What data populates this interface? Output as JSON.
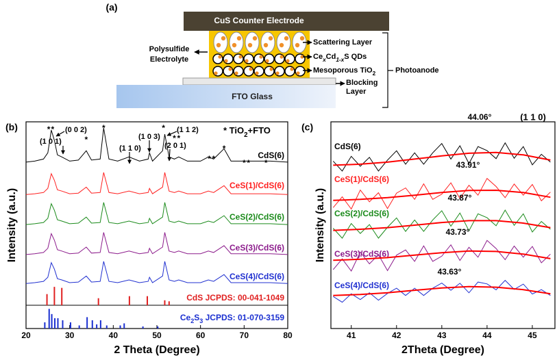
{
  "diagram": {
    "panel_label": "(a)",
    "counter_electrode": "CuS Counter Electrode",
    "scattering": "Scattering Layer",
    "qds": [
      "Ce",
      "x",
      "Cd",
      "1-x",
      "S QDs"
    ],
    "mesoporous": [
      "Mesoporous TiO",
      "2"
    ],
    "electrolyte": [
      "Polysulfide",
      "Electrolyte"
    ],
    "blocking": [
      "Blocking",
      "Layer"
    ],
    "fto": "FTO Glass",
    "photoanode": "Photoanode"
  },
  "chart_data": [
    {
      "type": "line",
      "panel_label": "(b)",
      "xlabel": "2 Theta (Degree)",
      "ylabel": "Intensity (a.u.)",
      "xlim": [
        20,
        80
      ],
      "xticks": [
        20,
        30,
        40,
        50,
        60,
        70,
        80
      ],
      "ylim": [
        0,
        100
      ],
      "x": [
        20,
        22,
        24,
        25,
        25.8,
        26.5,
        27.2,
        28.2,
        30,
        32,
        33.8,
        35,
        37,
        37.8,
        39,
        41,
        43.6,
        46,
        48,
        48.3,
        49,
        51.3,
        51.8,
        52.8,
        54,
        55,
        57,
        60,
        61.8,
        63,
        65.4,
        67,
        70,
        73,
        76,
        80
      ],
      "series": [
        {
          "name": "CdS(6)",
          "color": "#000000",
          "values": [
            80.5,
            81,
            82,
            85,
            96,
            91,
            84,
            83,
            81,
            81.5,
            86,
            81.5,
            82,
            97,
            82,
            81,
            83,
            81,
            82,
            85,
            81,
            86,
            94,
            83,
            82,
            83,
            81,
            81,
            83,
            82,
            87,
            81,
            81,
            81,
            81,
            80.5
          ]
        },
        {
          "name": "CeS(1)/CdS(6)",
          "color": "#ff2020",
          "values": [
            64.8,
            65.2,
            65.8,
            67.8,
            74.9,
            71.7,
            67.1,
            66.5,
            65.2,
            65.5,
            68.4,
            65.5,
            65.8,
            75.5,
            65.8,
            65.2,
            66.5,
            65.2,
            65.8,
            67.8,
            65.2,
            68.4,
            75.5,
            66.5,
            65.8,
            66.5,
            65.2,
            65.2,
            66.5,
            65.8,
            69.1,
            65.2,
            65.2,
            65.2,
            65.2,
            64.8
          ]
        },
        {
          "name": "CeS(2)/CdS(6)",
          "color": "#1a8a1a",
          "values": [
            50.3,
            50.7,
            51.3,
            53.3,
            60.4,
            57.2,
            52.6,
            52,
            50.7,
            51,
            53.9,
            51,
            51.3,
            61,
            51.3,
            50.7,
            52,
            50.7,
            51.3,
            53.3,
            50.7,
            53.9,
            61,
            52,
            51.3,
            52,
            50.7,
            50.7,
            52,
            51.3,
            54.6,
            50.7,
            50.7,
            50.7,
            50.7,
            50.3
          ]
        },
        {
          "name": "CeS(3)/CdS(6)",
          "color": "#8b1a8b",
          "values": [
            35.8,
            36.2,
            36.8,
            38.8,
            45.9,
            42.7,
            38.1,
            37.5,
            36.2,
            36.5,
            39.4,
            36.5,
            36.8,
            46.5,
            36.8,
            36.2,
            37.5,
            36.2,
            36.8,
            38.8,
            36.2,
            39.4,
            46.5,
            37.5,
            36.8,
            37.5,
            36.2,
            36.2,
            37.5,
            36.8,
            40.1,
            36.2,
            36.2,
            36.2,
            36.2,
            35.8
          ]
        },
        {
          "name": "CeS(4)/CdS(6)",
          "color": "#2030d0",
          "values": [
            21.8,
            22.2,
            22.8,
            24.8,
            31.9,
            28.7,
            24.1,
            23.5,
            22.2,
            22.5,
            25.4,
            22.5,
            22.8,
            32.5,
            22.8,
            22.2,
            23.5,
            22.2,
            22.8,
            24.8,
            22.2,
            25.4,
            32.5,
            23.5,
            22.8,
            23.5,
            22.2,
            22.2,
            23.5,
            22.8,
            26.1,
            22.2,
            22.2,
            22.2,
            22.2,
            21.8
          ]
        }
      ],
      "asterisk_label": "*",
      "asterisk_x": [
        25.2,
        26.1,
        33.8,
        37.8,
        51.5,
        54,
        55,
        62,
        63,
        65.4,
        70,
        71,
        75
      ],
      "legend_note": [
        "* TiO",
        "2",
        "+FTO"
      ],
      "hkl_labels": [
        "(0 0 2)",
        "(1 0 1)",
        "(1 1 0)",
        "(1 0 3)",
        "(1 1 2)",
        "(2 0 1)"
      ],
      "references": [
        {
          "name": [
            "CdS JCPDS: 00-041-1049"
          ],
          "color": "#e02020",
          "x": [
            24.8,
            26.5,
            28.2,
            36.6,
            43.7,
            47.8,
            51.8,
            52.8
          ],
          "values": [
            5.4,
            8.9,
            8.4,
            3.4,
            4.4,
            4.4,
            2.4,
            1.9
          ]
        },
        {
          "name": [
            "Ce",
            "2",
            "S",
            "3",
            " JCPDS: 01-070-3159"
          ],
          "color": "#1a2fd0",
          "x": [
            24.3,
            25.3,
            25.9,
            26.6,
            27.3,
            28.4,
            30.2,
            32.2,
            34,
            35.2,
            36.2,
            37.1,
            38.5,
            41.6,
            42.5,
            46.8,
            50.2
          ],
          "values": [
            3,
            9.5,
            7,
            5,
            5,
            4,
            3,
            1.5,
            5.5,
            4,
            2,
            4,
            1.5,
            1.5,
            2.5,
            1,
            1
          ]
        }
      ]
    },
    {
      "type": "line",
      "panel_label": "(c)",
      "xlabel": "2Theta (Degree)",
      "ylabel": "Intensity (a.u.)",
      "xlim": [
        40.55,
        45.5
      ],
      "xticks": [
        41,
        42,
        43,
        44,
        45
      ],
      "ylim": [
        0,
        100
      ],
      "x": [
        40.6,
        40.8,
        41,
        41.2,
        41.4,
        41.6,
        41.8,
        42,
        42.2,
        42.4,
        42.6,
        42.8,
        43,
        43.2,
        43.4,
        43.6,
        43.8,
        44,
        44.2,
        44.4,
        44.6,
        44.8,
        45,
        45.2,
        45.4
      ],
      "fit_x": [
        40.6,
        41.2,
        41.8,
        42.4,
        43,
        43.6,
        44.2,
        44.8,
        45.4
      ],
      "fit_color": "#ff0000",
      "hkl_label": "(1 1 0)",
      "series": [
        {
          "name": "CdS(6)",
          "color": "#000000",
          "peak_label": "44.06°",
          "values": [
            81,
            76.2,
            83.3,
            78.5,
            82.8,
            76.2,
            81.5,
            86,
            79.5,
            85,
            79.5,
            85,
            89.5,
            82,
            88.4,
            79.8,
            88,
            86.1,
            82.2,
            89.8,
            82.4,
            88,
            79.2,
            84.3,
            80.5
          ],
          "fit_values": [
            79,
            79.5,
            80.5,
            82,
            83.5,
            84.8,
            85.2,
            84,
            81.5
          ]
        },
        {
          "name": "CeS(1)/CdS(6)",
          "color": "#ff2020",
          "peak_label": "43.91°",
          "values": [
            58.5,
            63.7,
            57.8,
            67,
            61.3,
            65.7,
            58,
            65.5,
            68,
            62.5,
            70,
            62.5,
            65,
            70.5,
            62.9,
            69.3,
            64.5,
            72.6,
            68.7,
            63.3,
            69.9,
            64.5,
            69.7,
            61.8,
            66
          ],
          "fit_values": [
            62,
            62.5,
            63.3,
            64.5,
            65.8,
            66.8,
            66.9,
            65.8,
            63.5
          ]
        },
        {
          "name": "CeS(2)/CdS(6)",
          "color": "#1a8a1a",
          "peak_label": "43.87°",
          "values": [
            48.5,
            43.7,
            50.8,
            46,
            50.3,
            43.7,
            49,
            53.5,
            47,
            52.5,
            47,
            52.5,
            57,
            49.5,
            55.9,
            47.3,
            55.5,
            53.6,
            49.7,
            57.3,
            49.9,
            55.5,
            46.7,
            51.8,
            48
          ],
          "fit_values": [
            47.5,
            48,
            48.8,
            50,
            51.3,
            52.2,
            52.2,
            51,
            48.8
          ]
        },
        {
          "name": "CeS(3)/CdS(6)",
          "color": "#8b1a8b",
          "peak_label": "43.73°",
          "values": [
            28.5,
            33.7,
            27.8,
            37,
            31.3,
            35.7,
            28,
            35.5,
            38,
            32.5,
            40,
            32.5,
            35,
            40.5,
            32.9,
            39.3,
            34.5,
            42.6,
            38.7,
            33.3,
            39.9,
            34.5,
            39.7,
            31.8,
            36
          ],
          "fit_values": [
            33,
            33.5,
            34.3,
            35.5,
            36.7,
            37.5,
            37.3,
            36,
            33.8
          ]
        },
        {
          "name": "CeS(4)/CdS(6)",
          "color": "#2030d0",
          "peak_label": "43.63°",
          "values": [
            15.5,
            12.7,
            16.8,
            14,
            17.3,
            13.7,
            17,
            19.5,
            16,
            19.5,
            16,
            19.5,
            22,
            18.5,
            21.9,
            17.3,
            22.5,
            21.6,
            18.7,
            23.3,
            18.9,
            21.5,
            16.7,
            18.8,
            16
          ],
          "fit_values": [
            16,
            16.5,
            17.3,
            18.5,
            19.6,
            20.3,
            20,
            18.8,
            16.8
          ]
        }
      ]
    }
  ]
}
